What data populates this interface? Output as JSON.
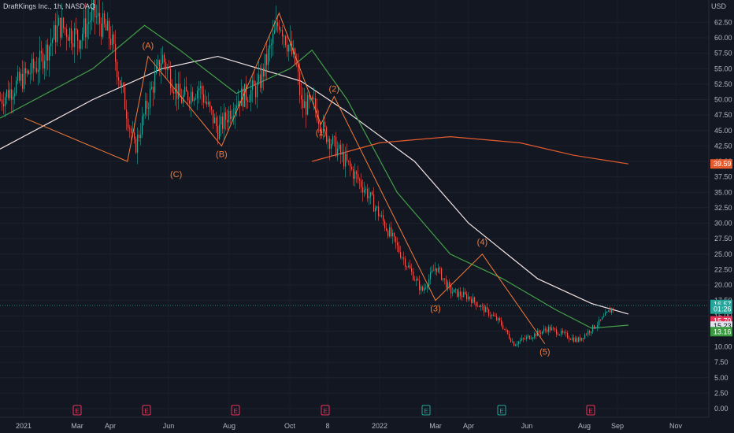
{
  "header": {
    "title": "DraftKings Inc., 1h, NASDAQ",
    "currency": "USD"
  },
  "price_axis": {
    "ticks": [
      "62.50",
      "60.00",
      "57.50",
      "55.00",
      "52.50",
      "50.00",
      "47.50",
      "45.00",
      "42.50",
      "40.00",
      "37.50",
      "35.00",
      "32.50",
      "30.00",
      "27.50",
      "25.00",
      "22.50",
      "20.00",
      "17.50",
      "15.00",
      "12.50",
      "10.00",
      "7.50",
      "5.00",
      "2.50",
      "0.00"
    ],
    "tags": [
      {
        "label": "39.59",
        "value": 39.59,
        "color": "#e65c2e"
      },
      {
        "label": "16.57",
        "value": 16.85,
        "color": "#26a69a"
      },
      {
        "label": "01:26",
        "value": 16.1,
        "color": "#26a69a"
      },
      {
        "label": "15.70",
        "value": 14.2,
        "color": "#e8335a"
      },
      {
        "label": "15.23",
        "value": 13.35,
        "color": "#e0e3eb"
      },
      {
        "label": "13.16",
        "value": 12.45,
        "color": "#3a9c3f"
      }
    ]
  },
  "time_axis": {
    "labels": [
      "2021",
      "Mar",
      "Apr",
      "Jun",
      "Aug",
      "Oct",
      "8",
      "2022",
      "Mar",
      "Apr",
      "Jun",
      "Aug",
      "Sep",
      "Nov"
    ]
  },
  "events": [
    {
      "label": "E",
      "color": "#e8335a"
    },
    {
      "label": "E",
      "color": "#e8335a"
    },
    {
      "label": "E",
      "color": "#e8335a"
    },
    {
      "label": "E",
      "color": "#e8335a"
    },
    {
      "label": "E",
      "color": "#26a69a"
    },
    {
      "label": "E",
      "color": "#26a69a"
    },
    {
      "label": "E",
      "color": "#e8335a"
    }
  ],
  "colors": {
    "background": "#131722",
    "up": "#26a69a",
    "down": "#ef5350",
    "ma_short": "#43a047",
    "ma_mid": "#f3e5e5",
    "ma_long": "#e65c2e",
    "wave": "#f57c3a"
  },
  "chart_data": {
    "type": "candlestick",
    "symbol": "DraftKings Inc.",
    "interval": "1h",
    "exchange": "NASDAQ",
    "ylim": [
      -1.3,
      65
    ],
    "price_path": [
      [
        "2021",
        50
      ],
      [
        "2021-02",
        56
      ],
      [
        "2021-02-mid",
        62
      ],
      [
        "2021-03",
        60
      ],
      [
        "2021-03-end",
        64
      ],
      [
        "2021-04",
        60
      ],
      [
        "2021-05",
        42
      ],
      [
        "2021-05-mid",
        50
      ],
      [
        "2021-06",
        57
      ],
      [
        "2021-06-mid",
        50
      ],
      [
        "2021-07",
        52
      ],
      [
        "2021-07-mid",
        45
      ],
      [
        "2021-08",
        50
      ],
      [
        "2021-08-mid",
        52
      ],
      [
        "2021-09",
        63
      ],
      [
        "2021-09-mid",
        55
      ],
      [
        "2021-10",
        49
      ],
      [
        "2021-10-mid",
        49
      ],
      [
        "2021-11",
        45
      ],
      [
        "2021-12",
        35
      ],
      [
        "2022-01",
        25
      ],
      [
        "2022-02",
        19
      ],
      [
        "2022-03",
        23
      ],
      [
        "2022-03-mid",
        19
      ],
      [
        "2022-04",
        18
      ],
      [
        "2022-05",
        14
      ],
      [
        "2022-05-mid",
        10.5
      ],
      [
        "2022-06",
        13
      ],
      [
        "2022-07",
        11
      ],
      [
        "2022-07-end",
        14
      ],
      [
        "2022-08",
        16.6
      ]
    ],
    "ma_short": [
      [
        2021.0,
        47
      ],
      [
        2021.2,
        55
      ],
      [
        2021.35,
        62
      ],
      [
        2021.45,
        58
      ],
      [
        2021.6,
        51
      ],
      [
        2021.75,
        55
      ],
      [
        2021.85,
        58
      ],
      [
        2021.95,
        50
      ],
      [
        2022.05,
        35
      ],
      [
        2022.2,
        25
      ],
      [
        2022.35,
        21
      ],
      [
        2022.5,
        16
      ],
      [
        2022.6,
        13
      ],
      [
        2022.7,
        13.5
      ]
    ],
    "ma_mid": [
      [
        2021.0,
        42
      ],
      [
        2021.2,
        50
      ],
      [
        2021.4,
        55
      ],
      [
        2021.55,
        57
      ],
      [
        2021.8,
        53
      ],
      [
        2021.95,
        48
      ],
      [
        2022.1,
        40
      ],
      [
        2022.25,
        30
      ],
      [
        2022.45,
        21
      ],
      [
        2022.6,
        17
      ],
      [
        2022.7,
        15.3
      ]
    ],
    "ma_long": [
      [
        2021.85,
        40
      ],
      [
        2022.0,
        43
      ],
      [
        2022.2,
        44
      ],
      [
        2022.4,
        43
      ],
      [
        2022.55,
        41
      ],
      [
        2022.7,
        39.59
      ]
    ],
    "elliott_waves": [
      {
        "label": "(A)",
        "value": 57
      },
      {
        "label": "(B)",
        "value": 42.5
      },
      {
        "label": "(C)",
        "value": 40
      },
      {
        "label": "(1)",
        "value": 46
      },
      {
        "label": "(2)",
        "value": 50.5
      },
      {
        "label": "(3)",
        "value": 17.5
      },
      {
        "label": "(4)",
        "value": 25
      },
      {
        "label": "(5)",
        "value": 10.5
      }
    ]
  }
}
